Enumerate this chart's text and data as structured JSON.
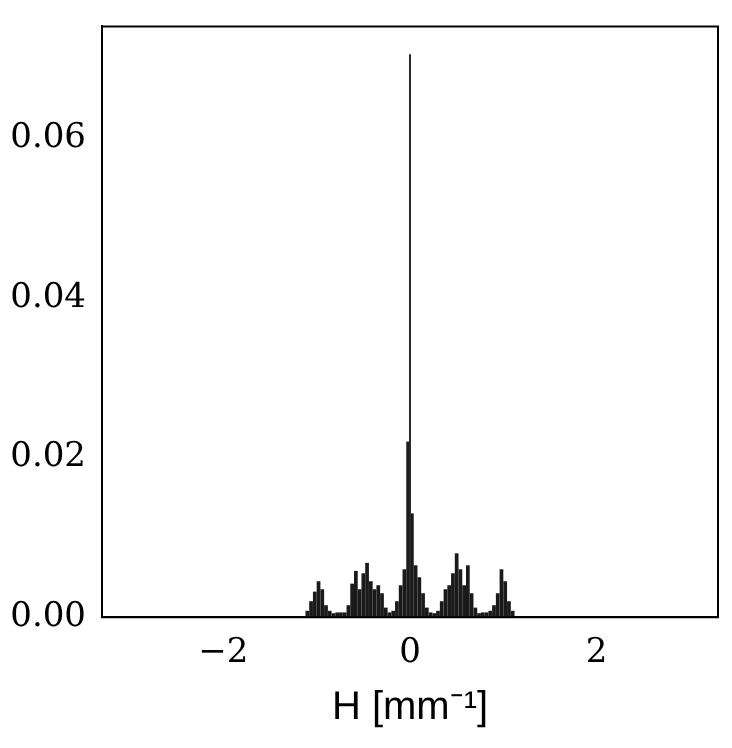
{
  "chart_data": {
    "type": "histogram",
    "xlabel": "H [mm⁻¹]",
    "bins": [
      -1.12,
      -1.08,
      -1.04,
      -1.0,
      -0.96,
      -0.92,
      -0.88,
      -0.84,
      -0.8,
      -0.76,
      -0.72,
      -0.68,
      -0.64,
      -0.6,
      -0.56,
      -0.52,
      -0.48,
      -0.44,
      -0.4,
      -0.36,
      -0.32,
      -0.28,
      -0.24,
      -0.2,
      -0.16,
      -0.12,
      -0.08,
      -0.04,
      -0.01,
      0.01,
      0.04,
      0.08,
      0.12,
      0.16,
      0.2,
      0.24,
      0.28,
      0.32,
      0.36,
      0.4,
      0.44,
      0.48,
      0.52,
      0.56,
      0.6,
      0.64,
      0.68,
      0.72,
      0.76,
      0.8,
      0.84,
      0.88,
      0.92,
      0.96,
      1.0,
      1.04,
      1.08,
      1.12
    ],
    "values": [
      0.0008,
      0.002,
      0.0032,
      0.0045,
      0.0035,
      0.0015,
      0.0008,
      0.0005,
      0.0006,
      0.0006,
      0.0006,
      0.0015,
      0.0042,
      0.0058,
      0.0035,
      0.0055,
      0.0068,
      0.0045,
      0.0035,
      0.004,
      0.003,
      0.0012,
      0.0006,
      0.0008,
      0.002,
      0.004,
      0.006,
      0.022,
      0.0705,
      0.013,
      0.0065,
      0.005,
      0.003,
      0.0012,
      0.0006,
      0.0005,
      0.0008,
      0.002,
      0.0035,
      0.004,
      0.0055,
      0.008,
      0.006,
      0.004,
      0.0065,
      0.003,
      0.0012,
      0.0005,
      0.0006,
      0.0006,
      0.0008,
      0.0015,
      0.003,
      0.006,
      0.0045,
      0.002,
      0.0008
    ],
    "color": "#1a1a1a",
    "xlim": [
      -3.3,
      3.3
    ],
    "xticks": [
      {
        "value": -2,
        "label": "−2"
      },
      {
        "value": 0,
        "label": "0"
      },
      {
        "value": 2,
        "label": "2"
      }
    ],
    "ylim": [
      0,
      0.074
    ],
    "yticks": [
      {
        "value": 0,
        "label": "0.00"
      },
      {
        "value": 0.02,
        "label": "0.02"
      },
      {
        "value": 0.04,
        "label": "0.04"
      },
      {
        "value": 0.06,
        "label": "0.06"
      }
    ],
    "grid": false,
    "legend": false
  }
}
